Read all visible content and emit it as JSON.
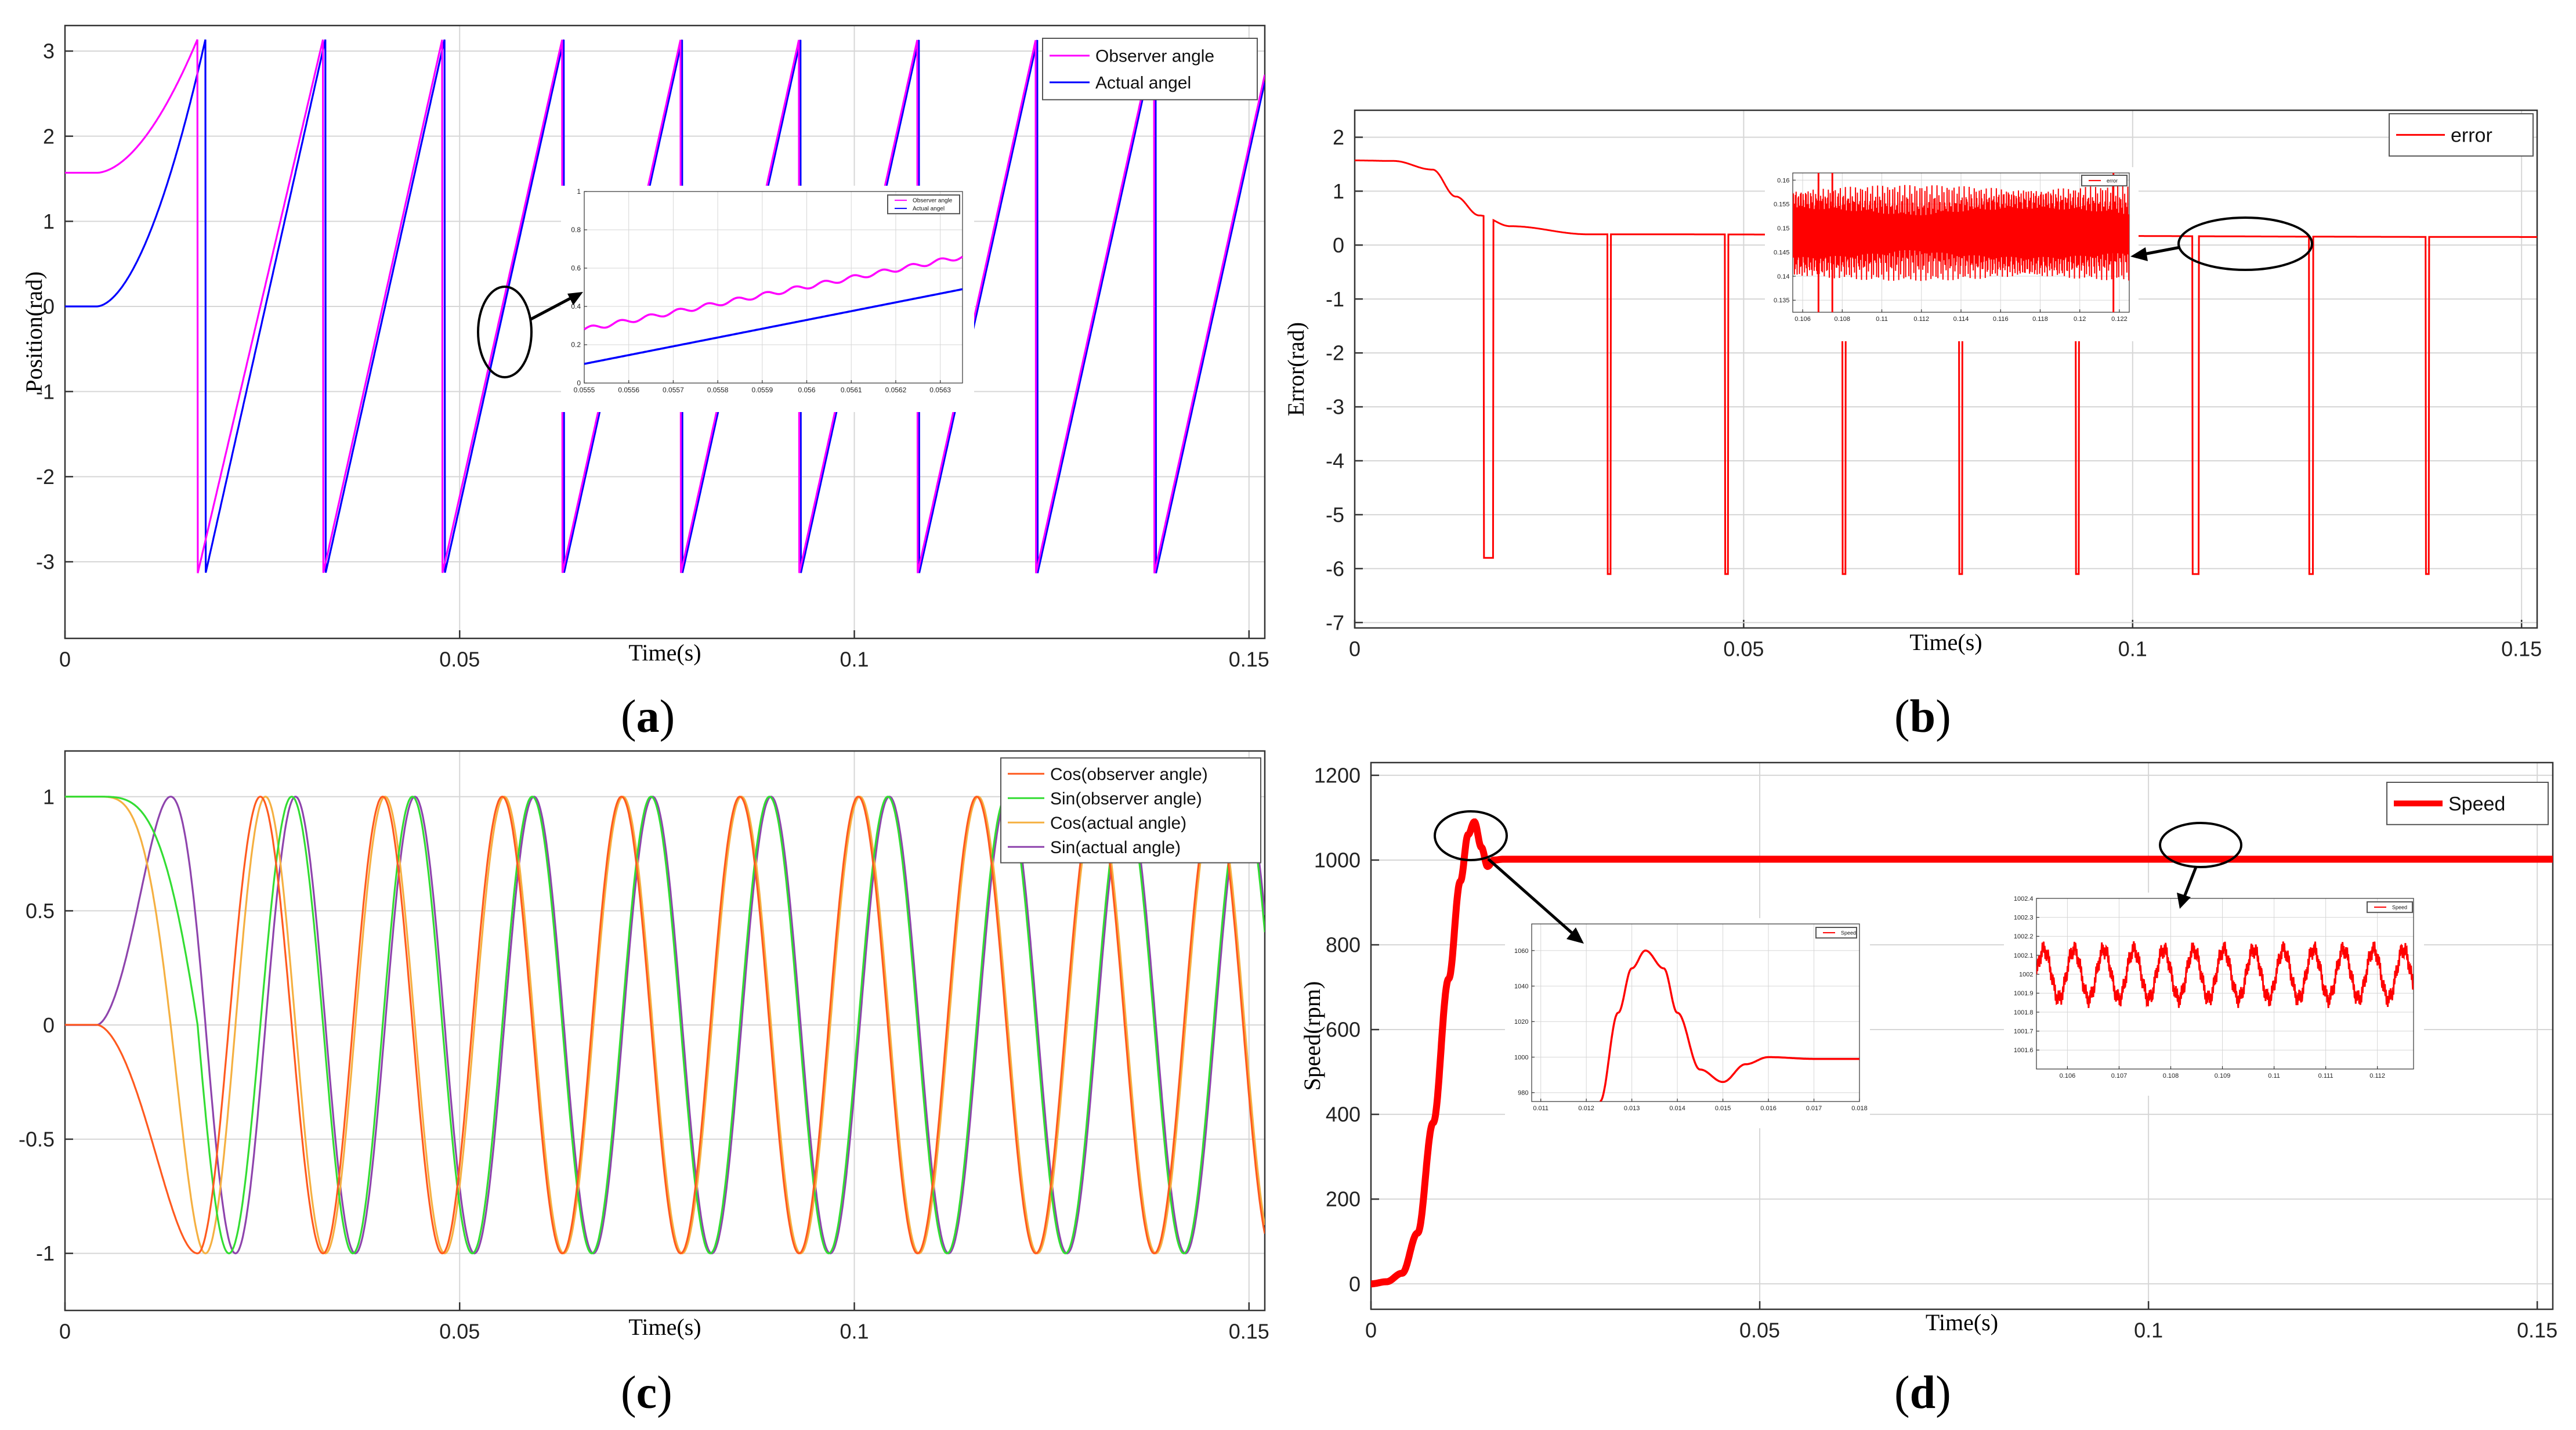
{
  "captions": {
    "a": "a",
    "b": "b",
    "c": "c",
    "d": "d"
  },
  "chart_data": [
    {
      "panel": "a",
      "type": "line",
      "xlabel": "Time(s)",
      "ylabel": "Position(rad)",
      "xlim": [
        0,
        0.152
      ],
      "ylim": [
        -3.9,
        3.3
      ],
      "xticks": [
        0,
        0.05,
        0.1,
        0.15
      ],
      "xtick_labels": [
        "0",
        "0.05",
        "0.1",
        "0.15"
      ],
      "yticks": [
        -3,
        -2,
        -1,
        0,
        1,
        2,
        3
      ],
      "ytick_labels": [
        "-3",
        "-2",
        "-1",
        "0",
        "1",
        "2",
        "3"
      ],
      "grid": true,
      "legend_position": "top-right",
      "series": [
        {
          "name": "Observer angle",
          "color": "#ff00ff",
          "model": "sawtooth",
          "initial": 1.57,
          "wrap_times": [
            0.0168,
            0.0327,
            0.0478,
            0.063,
            0.078,
            0.093,
            0.108,
            0.123,
            0.138
          ]
        },
        {
          "name": "Actual angel",
          "color": "#0000ff",
          "model": "sawtooth",
          "initial": 0,
          "wrap_times": [
            0.0178,
            0.033,
            0.0481,
            0.0632,
            0.0782,
            0.0932,
            0.1082,
            0.1232,
            0.1382
          ]
        }
      ],
      "inset": {
        "xlim": [
          0.0555,
          0.05635
        ],
        "ylim": [
          0,
          1
        ],
        "xticks": [
          0.0555,
          0.0556,
          0.0557,
          0.0558,
          0.0559,
          0.056,
          0.0561,
          0.0562,
          0.0563
        ],
        "xtick_labels": [
          "0.0555",
          "0.0556",
          "0.0557",
          "0.0558",
          "0.0559",
          "0.056",
          "0.0561",
          "0.0562",
          "0.0563"
        ],
        "yticks": [
          0,
          0.2,
          0.4,
          0.6,
          0.8,
          1
        ],
        "ytick_labels": [
          "0",
          "0.2",
          "0.4",
          "0.6",
          "0.8",
          "1"
        ],
        "series": [
          {
            "name": "Observer angle",
            "color": "#ff00ff",
            "x": [
              0.0555,
              0.05635
            ],
            "y": [
              0.28,
              0.66
            ]
          },
          {
            "name": "Actual angel",
            "color": "#0000ff",
            "x": [
              0.0555,
              0.05635
            ],
            "y": [
              0.1,
              0.49
            ]
          }
        ]
      }
    },
    {
      "panel": "b",
      "type": "line",
      "xlabel": "Time(s)",
      "ylabel": "Error(rad)",
      "xlim": [
        0,
        0.152
      ],
      "ylim": [
        -7.1,
        2.5
      ],
      "xticks": [
        0,
        0.05,
        0.1,
        0.15
      ],
      "xtick_labels": [
        "0",
        "0.05",
        "0.1",
        "0.15"
      ],
      "yticks": [
        -7,
        -6,
        -5,
        -4,
        -3,
        -2,
        -1,
        0,
        1,
        2
      ],
      "ytick_labels": [
        "-7",
        "-6",
        "-5",
        "-4",
        "-3",
        "-2",
        "-1",
        "0",
        "1",
        "2"
      ],
      "grid": true,
      "legend_position": "top-right",
      "series": [
        {
          "name": "error",
          "color": "#ff0000",
          "base": {
            "x": [
              0,
              0.005,
              0.01,
              0.013,
              0.016,
              0.02,
              0.03,
              0.152
            ],
            "y": [
              1.57,
              1.56,
              1.4,
              0.9,
              0.55,
              0.35,
              0.2,
              0.15
            ]
          },
          "spikes": [
            {
              "t0": 0.0166,
              "t1": 0.0178,
              "y": -5.8
            },
            {
              "t0": 0.0325,
              "t1": 0.0329,
              "y": -6.1
            },
            {
              "t0": 0.0476,
              "t1": 0.048,
              "y": -6.1
            },
            {
              "t0": 0.0627,
              "t1": 0.0631,
              "y": -6.1
            },
            {
              "t0": 0.0777,
              "t1": 0.0781,
              "y": -6.1
            },
            {
              "t0": 0.0927,
              "t1": 0.0931,
              "y": -6.1
            },
            {
              "t0": 0.1077,
              "t1": 0.1085,
              "y": -6.1
            },
            {
              "t0": 0.1227,
              "t1": 0.1232,
              "y": -6.1
            },
            {
              "t0": 0.1377,
              "t1": 0.1381,
              "y": -6.1
            }
          ]
        }
      ],
      "inset": {
        "xlim": [
          0.1055,
          0.1225
        ],
        "ylim": [
          0.1325,
          0.1615
        ],
        "xticks": [
          0.106,
          0.108,
          0.11,
          0.112,
          0.114,
          0.116,
          0.118,
          0.12,
          0.122
        ],
        "xtick_labels": [
          "0.106",
          "0.108",
          "0.11",
          "0.112",
          "0.114",
          "0.116",
          "0.118",
          "0.12",
          "0.122"
        ],
        "yticks": [
          0.135,
          0.14,
          0.145,
          0.15,
          0.155,
          0.16
        ],
        "ytick_labels": [
          "0.135",
          "0.14",
          "0.145",
          "0.15",
          "0.155",
          "0.16"
        ],
        "series": [
          {
            "name": "error",
            "color": "#ff0000",
            "mean": 0.149,
            "amplitude": 0.01
          }
        ]
      }
    },
    {
      "panel": "c",
      "type": "line",
      "xlabel": "Time(s)",
      "ylabel": "",
      "xlim": [
        0,
        0.152
      ],
      "ylim": [
        -1.25,
        1.2
      ],
      "xticks": [
        0,
        0.05,
        0.1,
        0.15
      ],
      "xtick_labels": [
        "0",
        "0.05",
        "0.1",
        "0.15"
      ],
      "yticks": [
        -1,
        -0.5,
        0,
        0.5,
        1
      ],
      "ytick_labels": [
        "-1",
        "-0.5",
        "0",
        "0.5",
        "1"
      ],
      "grid": true,
      "legend_position": "top-right",
      "series": [
        {
          "name": "Cos(observer angle)",
          "color": "#ff5a1f",
          "function": "cos",
          "source": "observer"
        },
        {
          "name": "Sin(observer angle)",
          "color": "#33dd33",
          "function": "sin",
          "source": "observer"
        },
        {
          "name": "Cos(actual angle)",
          "color": "#f5b041",
          "function": "cos",
          "source": "actual"
        },
        {
          "name": "Sin(actual angle)",
          "color": "#8e44ad",
          "function": "sin",
          "source": "actual"
        }
      ]
    },
    {
      "panel": "d",
      "type": "line",
      "xlabel": "Time(s)",
      "ylabel": "Speed(rpm)",
      "xlim": [
        0,
        0.152
      ],
      "ylim": [
        -60,
        1230
      ],
      "xticks": [
        0,
        0.05,
        0.1,
        0.15
      ],
      "xtick_labels": [
        "0",
        "0.05",
        "0.1",
        "0.15"
      ],
      "yticks": [
        0,
        200,
        400,
        600,
        800,
        1000,
        1200
      ],
      "ytick_labels": [
        "0",
        "200",
        "400",
        "600",
        "800",
        "1000",
        "1200"
      ],
      "grid": true,
      "legend_position": "top-right",
      "series": [
        {
          "name": "Speed",
          "color": "#ff0000",
          "x": [
            0,
            0.002,
            0.004,
            0.006,
            0.008,
            0.01,
            0.0115,
            0.0125,
            0.0133,
            0.0142,
            0.015,
            0.0158,
            0.017,
            0.152
          ],
          "y": [
            0,
            5,
            25,
            120,
            380,
            720,
            950,
            1060,
            1090,
            1030,
            985,
            1000,
            1002,
            1002
          ]
        }
      ],
      "insets": [
        {
          "xlim": [
            0.0108,
            0.018
          ],
          "ylim": [
            975,
            1075
          ],
          "xticks": [
            0.011,
            0.012,
            0.013,
            0.014,
            0.015,
            0.016,
            0.017,
            0.018
          ],
          "xtick_labels": [
            "0.011",
            "0.012",
            "0.013",
            "0.014",
            "0.015",
            "0.016",
            "0.017",
            "0.018"
          ],
          "yticks": [
            980,
            1000,
            1020,
            1040,
            1060
          ],
          "ytick_labels": [
            "980",
            "1000",
            "1020",
            "1040",
            "1060"
          ],
          "series": [
            {
              "name": "Speed",
              "color": "#ff0000",
              "x": [
                0.0123,
                0.0127,
                0.013,
                0.0133,
                0.0137,
                0.014,
                0.0145,
                0.015,
                0.0155,
                0.016,
                0.017,
                0.018
              ],
              "y": [
                975,
                1025,
                1050,
                1060,
                1050,
                1025,
                993,
                986,
                996,
                1000,
                999,
                999
              ]
            }
          ]
        },
        {
          "xlim": [
            0.1054,
            0.1127
          ],
          "ylim": [
            1001.5,
            1002.4
          ],
          "xticks": [
            0.106,
            0.107,
            0.108,
            0.109,
            0.11,
            0.111,
            0.112
          ],
          "xtick_labels": [
            "0.106",
            "0.107",
            "0.108",
            "0.109",
            "0.11",
            "0.111",
            "0.112"
          ],
          "yticks": [
            1001.6,
            1001.7,
            1001.8,
            1001.9,
            1002,
            1002.1,
            1002.2,
            1002.3,
            1002.4
          ],
          "ytick_labels": [
            "1001.6",
            "1001.7",
            "1001.8",
            "1001.9",
            "1002",
            "1002.1",
            "1002.2",
            "1002.3",
            "1002.4"
          ],
          "series": [
            {
              "name": "Speed",
              "color": "#ff0000",
              "mean": 1002.0,
              "amplitude": 0.13,
              "period": 0.00058
            }
          ]
        }
      ]
    }
  ]
}
